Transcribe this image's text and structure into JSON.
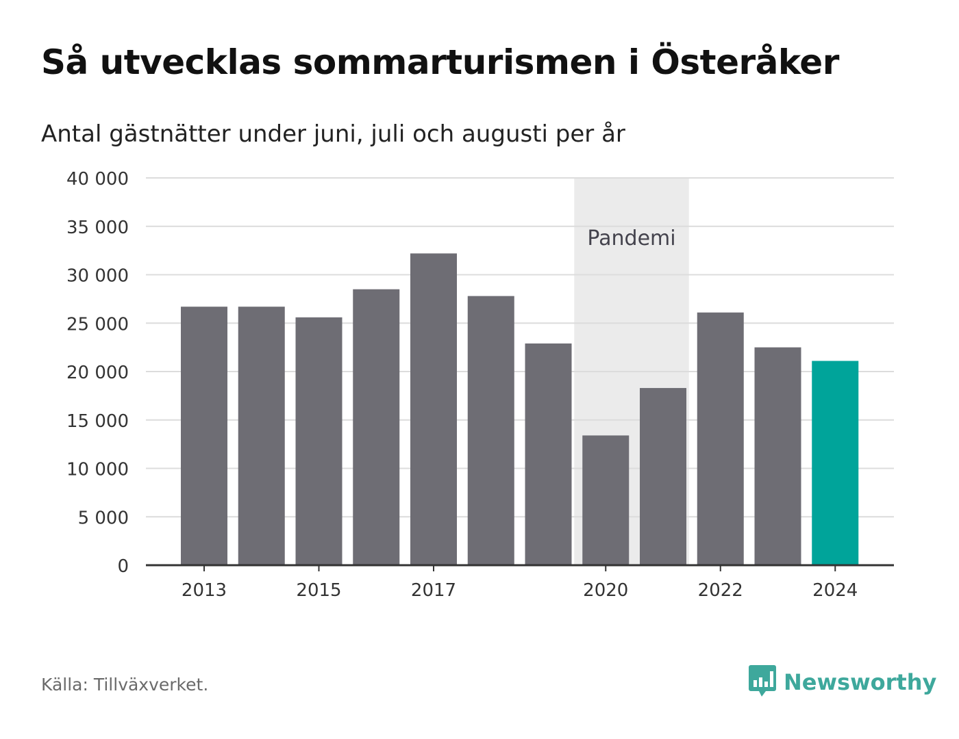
{
  "header": {
    "title": "Så utvecklas sommarturismen i Österåker",
    "subtitle": "Antal gästnätter under juni, juli och augusti per år"
  },
  "footer": {
    "source": "Källa: Tillväxverket.",
    "brand": "Newsworthy",
    "brand_icon": "bar-chart-speech-bubble-icon"
  },
  "colors": {
    "bar": "#6e6d74",
    "highlight": "#00a49a",
    "band": "#ebebeb",
    "grid": "#dcdcdc",
    "axis": "#333333",
    "brand": "#3ea89c"
  },
  "chart_data": {
    "type": "bar",
    "title": "Så utvecklas sommarturismen i Österåker",
    "subtitle": "Antal gästnätter under juni, juli och augusti per år",
    "xlabel": "",
    "ylabel": "",
    "categories": [
      "2013",
      "2014",
      "2015",
      "2016",
      "2017",
      "2018",
      "2019",
      "2020",
      "2021",
      "2022",
      "2023",
      "2024"
    ],
    "values": [
      26700,
      26700,
      25600,
      28500,
      32200,
      27800,
      22900,
      13400,
      18300,
      26100,
      22500,
      21100
    ],
    "highlight_category": "2024",
    "x_tick_labels": [
      "2013",
      "2015",
      "2017",
      "2020",
      "2022",
      "2024"
    ],
    "ylim": [
      0,
      40000
    ],
    "y_ticks": [
      0,
      5000,
      10000,
      15000,
      20000,
      25000,
      30000,
      35000,
      40000
    ],
    "y_tick_labels": [
      "0",
      "5 000",
      "10 000",
      "15 000",
      "20 000",
      "25 000",
      "30 000",
      "35 000",
      "40 000"
    ],
    "grid": true,
    "annotation": {
      "label": "Pandemi",
      "from": "2020",
      "to": "2021"
    }
  }
}
